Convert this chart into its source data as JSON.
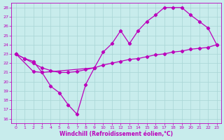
{
  "xlabel": "Windchill (Refroidissement éolien,°C)",
  "xlim": [
    -0.5,
    23.5
  ],
  "ylim": [
    15.5,
    28.5
  ],
  "xticks": [
    0,
    1,
    2,
    3,
    4,
    5,
    6,
    7,
    8,
    9,
    10,
    11,
    12,
    13,
    14,
    15,
    16,
    17,
    18,
    19,
    20,
    21,
    22,
    23
  ],
  "yticks": [
    16,
    17,
    18,
    19,
    20,
    21,
    22,
    23,
    24,
    25,
    26,
    27,
    28
  ],
  "line_color": "#bb00bb",
  "bg_color": "#c8ecec",
  "grid_color": "#a8d4d4",
  "line1_x": [
    0,
    1,
    2,
    3,
    9,
    10,
    11,
    12,
    13,
    14,
    15,
    16,
    17,
    18,
    19,
    20,
    21,
    22,
    23
  ],
  "line1_y": [
    23.0,
    22.5,
    22.2,
    21.0,
    21.5,
    23.2,
    24.1,
    25.5,
    24.1,
    25.5,
    26.5,
    27.2,
    28.0,
    28.0,
    28.0,
    27.2,
    26.5,
    25.8,
    24.0
  ],
  "line2_x": [
    0,
    2,
    3,
    4,
    5,
    6,
    7,
    8,
    9
  ],
  "line2_y": [
    23.0,
    21.1,
    21.0,
    19.5,
    18.8,
    17.5,
    16.5,
    19.7,
    21.5
  ],
  "line3_x": [
    0,
    1,
    2,
    3,
    4,
    5,
    6,
    7,
    8,
    9,
    10,
    11,
    12,
    13,
    14,
    15,
    16,
    17,
    18,
    19,
    20,
    21,
    22,
    23
  ],
  "line3_y": [
    23.0,
    22.5,
    22.0,
    21.5,
    21.2,
    21.0,
    21.0,
    21.1,
    21.3,
    21.5,
    21.8,
    22.0,
    22.2,
    22.4,
    22.5,
    22.7,
    22.9,
    23.0,
    23.2,
    23.3,
    23.5,
    23.6,
    23.7,
    24.0
  ]
}
